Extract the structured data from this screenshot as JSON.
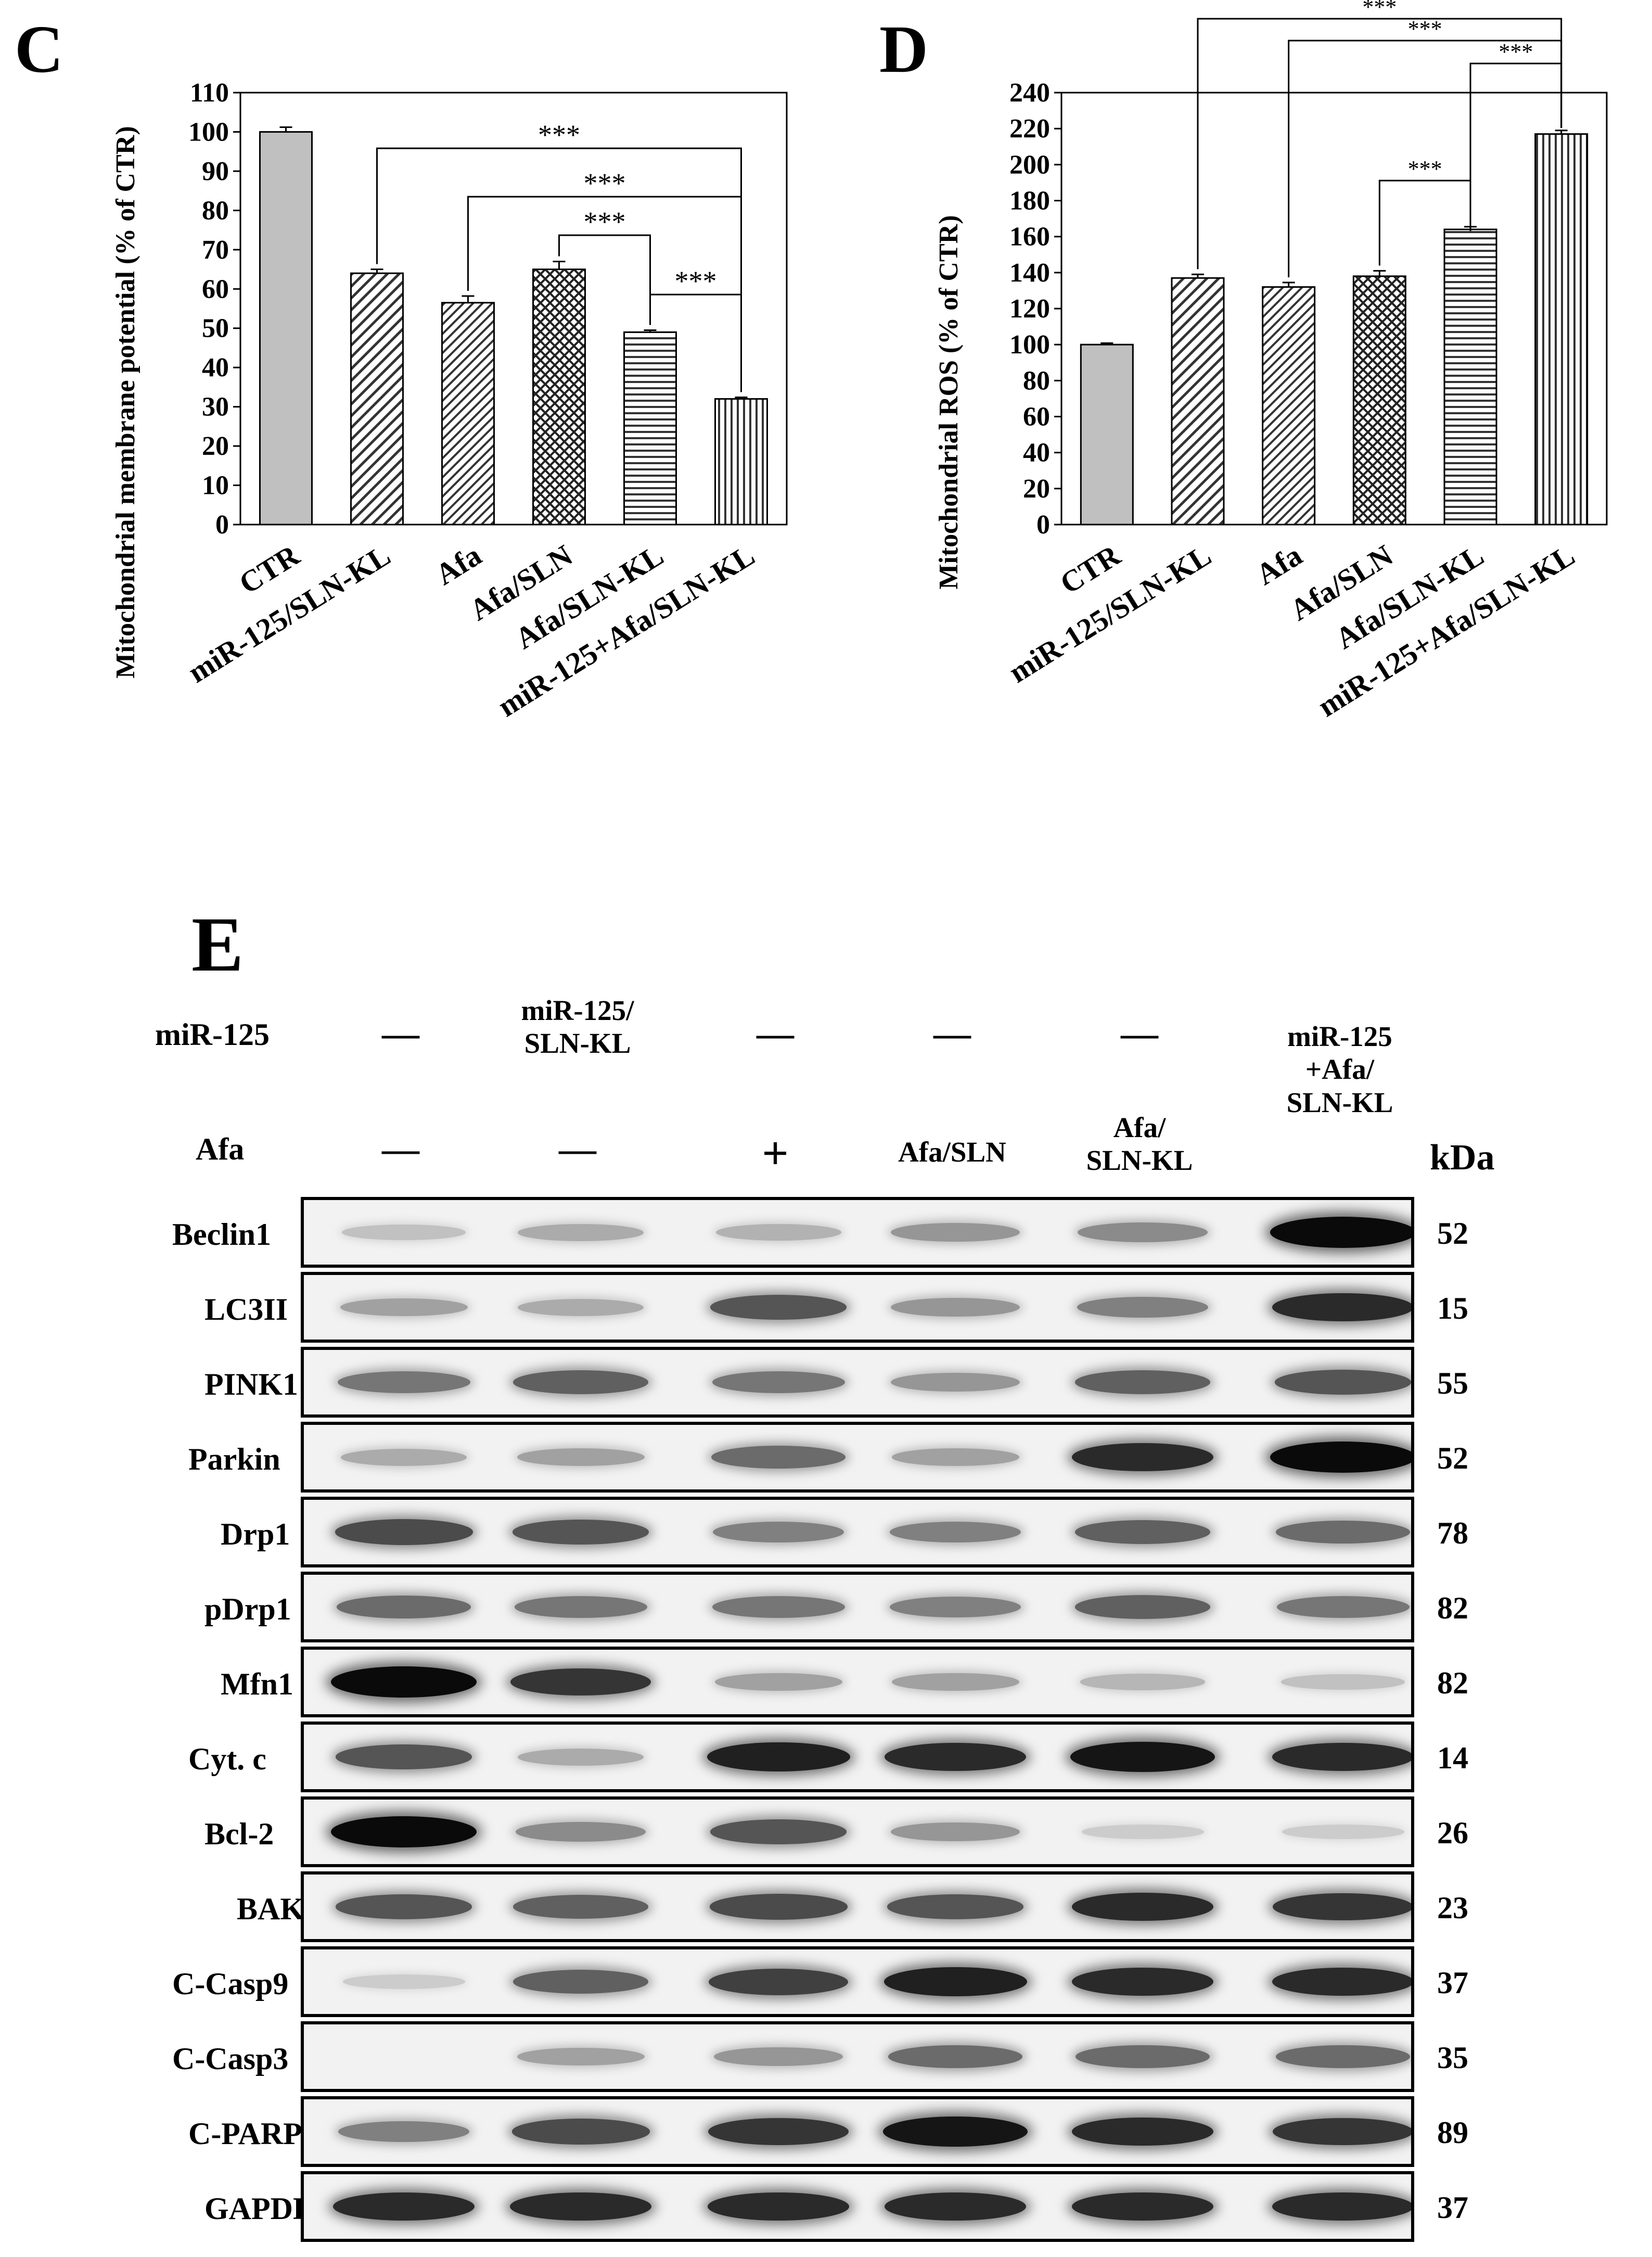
{
  "panels": {
    "C": "C",
    "D": "D",
    "E": "E"
  },
  "chart_data": [
    {
      "type": "bar",
      "panel": "C",
      "categories": [
        "CTR",
        "miR-125/SLN-KL",
        "Afa",
        "Afa/SLN",
        "Afa/SLN-KL",
        "miR-125+Afa/SLN-KL"
      ],
      "values": [
        100,
        64,
        56.5,
        65,
        49,
        32
      ],
      "errors": [
        1.2,
        1,
        1.7,
        2,
        0.5,
        0.4
      ],
      "ylabel": "Mitochondrial membrane potential (% of CTR)",
      "ylim": [
        0,
        110
      ],
      "yticks": [
        0,
        10,
        20,
        30,
        40,
        50,
        60,
        70,
        80,
        90,
        100,
        110
      ],
      "significance": [
        {
          "from": 1,
          "to": 5,
          "label": "***"
        },
        {
          "from": 2,
          "to": 5,
          "label": "***"
        },
        {
          "from": 3,
          "to": 4,
          "label": "***"
        },
        {
          "from": 4,
          "to": 5,
          "label": "***"
        }
      ]
    },
    {
      "type": "bar",
      "panel": "D",
      "categories": [
        "CTR",
        "miR-125/SLN-KL",
        "Afa",
        "Afa/SLN",
        "Afa/SLN-KL",
        "miR-125+Afa/SLN-KL"
      ],
      "values": [
        100,
        137,
        132,
        138,
        164,
        217
      ],
      "errors": [
        0.8,
        2,
        2.5,
        3,
        1.5,
        2
      ],
      "ylabel": "Mitochondrial ROS (% of CTR)",
      "ylim": [
        0,
        240
      ],
      "yticks": [
        0,
        20,
        40,
        60,
        80,
        100,
        120,
        140,
        160,
        180,
        200,
        220,
        240
      ],
      "significance": [
        {
          "from": 1,
          "to": 5,
          "label": "***"
        },
        {
          "from": 2,
          "to": 5,
          "label": "***"
        },
        {
          "from": 4,
          "to": 5,
          "label": "***"
        },
        {
          "from": 3,
          "to": 4,
          "label": "***"
        }
      ]
    }
  ],
  "blot": {
    "row_headers": {
      "mir": "miR-125",
      "afa": "Afa",
      "kda": "kDa"
    },
    "mir_row": [
      "—",
      "miR-125/\nSLN-KL",
      "—",
      "—",
      "—",
      "miR-125\n+Afa/\nSLN-KL"
    ],
    "afa_row": [
      "—",
      "—",
      "+",
      "Afa/SLN",
      "Afa/\nSLN-KL",
      ""
    ],
    "proteins": [
      {
        "name": "Beclin1",
        "kda": "52",
        "intensity": [
          0.15,
          0.25,
          0.22,
          0.35,
          0.4,
          1.0
        ]
      },
      {
        "name": "LC3II",
        "kda": "15",
        "intensity": [
          0.3,
          0.25,
          0.65,
          0.35,
          0.45,
          0.85
        ]
      },
      {
        "name": "PINK1",
        "kda": "55",
        "intensity": [
          0.5,
          0.6,
          0.5,
          0.35,
          0.6,
          0.65
        ]
      },
      {
        "name": "Parkin",
        "kda": "52",
        "intensity": [
          0.25,
          0.3,
          0.55,
          0.3,
          0.85,
          1.0
        ]
      },
      {
        "name": "Drp1",
        "kda": "78",
        "intensity": [
          0.7,
          0.65,
          0.45,
          0.45,
          0.6,
          0.55
        ]
      },
      {
        "name": "pDrp1",
        "kda": "82",
        "intensity": [
          0.55,
          0.5,
          0.5,
          0.45,
          0.6,
          0.5
        ]
      },
      {
        "name": "Mfn1",
        "kda": "82",
        "intensity": [
          1.0,
          0.8,
          0.3,
          0.3,
          0.2,
          0.15
        ]
      },
      {
        "name": "Cyt. c",
        "kda": "14",
        "intensity": [
          0.65,
          0.25,
          0.9,
          0.85,
          0.95,
          0.85
        ]
      },
      {
        "name": "Bcl-2",
        "kda": "26",
        "intensity": [
          1.0,
          0.4,
          0.65,
          0.35,
          0.1,
          0.1
        ]
      },
      {
        "name": "BAK",
        "kda": "23",
        "intensity": [
          0.65,
          0.6,
          0.7,
          0.65,
          0.85,
          0.8
        ]
      },
      {
        "name": "C-Casp9",
        "kda": "37",
        "intensity": [
          0.1,
          0.6,
          0.75,
          0.9,
          0.85,
          0.85
        ]
      },
      {
        "name": "C-Casp3",
        "kda": "35",
        "intensity": [
          0.0,
          0.3,
          0.35,
          0.55,
          0.55,
          0.55
        ]
      },
      {
        "name": "C-PARP",
        "kda": "89",
        "intensity": [
          0.45,
          0.7,
          0.8,
          0.95,
          0.85,
          0.8
        ]
      },
      {
        "name": "GAPDH",
        "kda": "37",
        "intensity": [
          0.85,
          0.85,
          0.85,
          0.85,
          0.85,
          0.85
        ]
      }
    ]
  }
}
